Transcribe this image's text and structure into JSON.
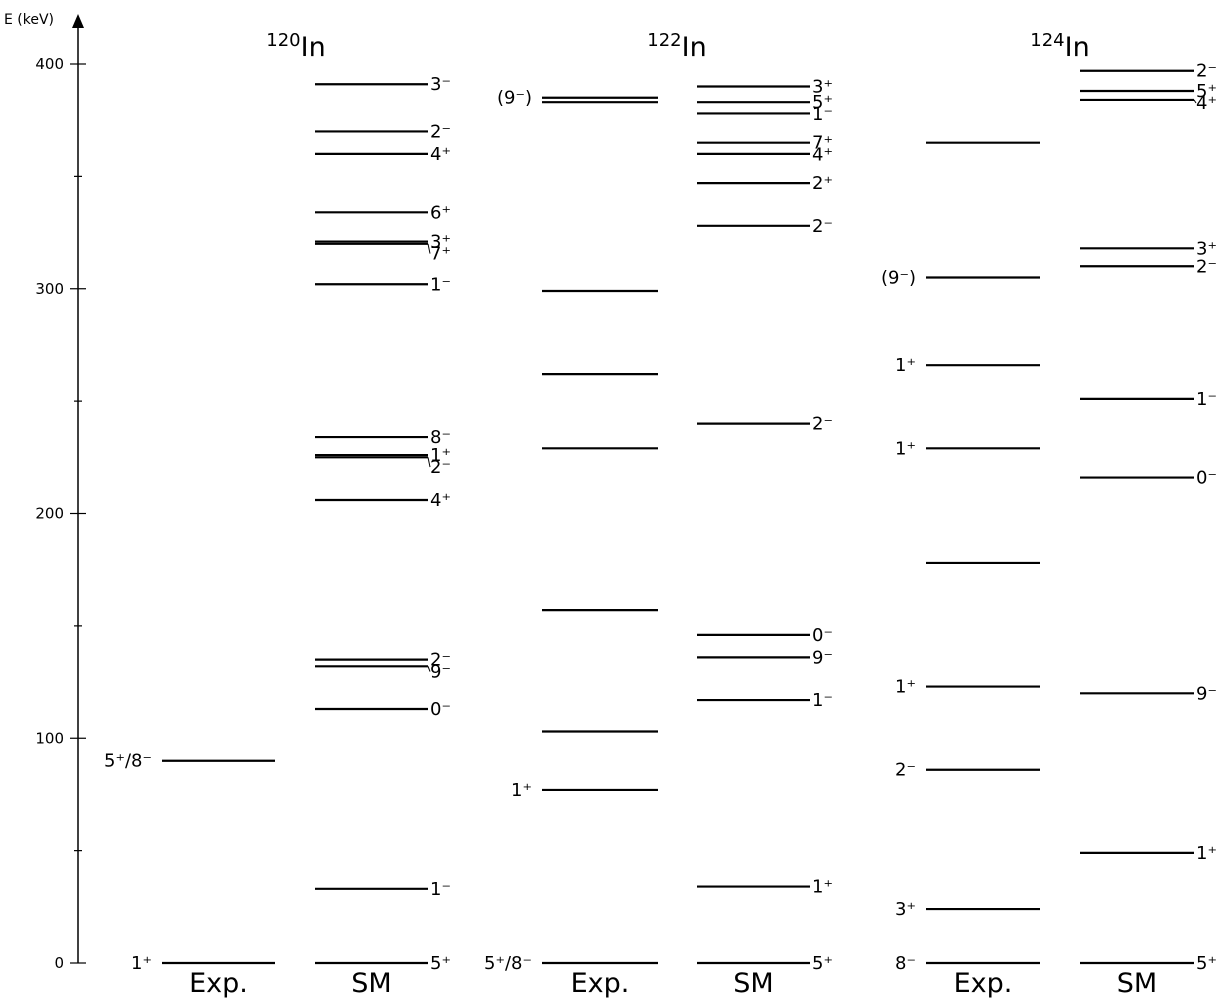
{
  "chart_data": {
    "type": "level_scheme",
    "y_axis": {
      "label": "E (keV)",
      "range": [
        0,
        410
      ],
      "ticks": [
        0,
        100,
        200,
        300,
        400
      ],
      "minor_ticks": [
        50,
        150,
        250,
        350
      ]
    },
    "nuclei": [
      {
        "mass": "120",
        "element": "In",
        "columns": [
          {
            "label": "Exp.",
            "levels": [
              {
                "energy": 0,
                "spin": "1⁺"
              },
              {
                "energy": 90,
                "spin": "5⁺/8⁻"
              }
            ]
          },
          {
            "label": "SM",
            "levels": [
              {
                "energy": 0,
                "spin": "5⁺"
              },
              {
                "energy": 33,
                "spin": "1⁻"
              },
              {
                "energy": 113,
                "spin": "0⁻"
              },
              {
                "energy": 132,
                "spin": "9⁻"
              },
              {
                "energy": 135,
                "spin": "2⁻"
              },
              {
                "energy": 206,
                "spin": "4⁺"
              },
              {
                "energy": 225,
                "spin": "2⁻"
              },
              {
                "energy": 226,
                "spin": "1⁺"
              },
              {
                "energy": 234,
                "spin": "8⁻"
              },
              {
                "energy": 302,
                "spin": "1⁻"
              },
              {
                "energy": 320,
                "spin": "7⁺"
              },
              {
                "energy": 321,
                "spin": "3⁺"
              },
              {
                "energy": 334,
                "spin": "6⁺"
              },
              {
                "energy": 360,
                "spin": "4⁺"
              },
              {
                "energy": 370,
                "spin": "2⁻"
              },
              {
                "energy": 391,
                "spin": "3⁻"
              }
            ]
          }
        ]
      },
      {
        "mass": "122",
        "element": "In",
        "columns": [
          {
            "label": "Exp.",
            "levels": [
              {
                "energy": 0,
                "spin": "5⁺/8⁻"
              },
              {
                "energy": 77,
                "spin": "1⁺"
              },
              {
                "energy": 103,
                "spin": ""
              },
              {
                "energy": 157,
                "spin": ""
              },
              {
                "energy": 229,
                "spin": ""
              },
              {
                "energy": 262,
                "spin": ""
              },
              {
                "energy": 299,
                "spin": ""
              },
              {
                "energy": 383,
                "spin": ""
              },
              {
                "energy": 385,
                "spin": "(9⁻)"
              }
            ]
          },
          {
            "label": "SM",
            "levels": [
              {
                "energy": 0,
                "spin": "5⁺"
              },
              {
                "energy": 34,
                "spin": "1⁺"
              },
              {
                "energy": 117,
                "spin": "1⁻"
              },
              {
                "energy": 136,
                "spin": "9⁻"
              },
              {
                "energy": 146,
                "spin": "0⁻"
              },
              {
                "energy": 240,
                "spin": "2⁻"
              },
              {
                "energy": 328,
                "spin": "2⁻"
              },
              {
                "energy": 347,
                "spin": "2⁺"
              },
              {
                "energy": 360,
                "spin": "4⁺"
              },
              {
                "energy": 365,
                "spin": "7⁺"
              },
              {
                "energy": 378,
                "spin": "1⁻"
              },
              {
                "energy": 383,
                "spin": "5⁺"
              },
              {
                "energy": 390,
                "spin": "3⁺"
              }
            ]
          }
        ]
      },
      {
        "mass": "124",
        "element": "In",
        "columns": [
          {
            "label": "Exp.",
            "levels": [
              {
                "energy": 0,
                "spin": "8⁻"
              },
              {
                "energy": 24,
                "spin": "3⁺"
              },
              {
                "energy": 86,
                "spin": "2⁻"
              },
              {
                "energy": 123,
                "spin": "1⁺"
              },
              {
                "energy": 178,
                "spin": ""
              },
              {
                "energy": 229,
                "spin": "1⁺"
              },
              {
                "energy": 266,
                "spin": "1⁺"
              },
              {
                "energy": 305,
                "spin": "(9⁻)"
              },
              {
                "energy": 365,
                "spin": ""
              }
            ]
          },
          {
            "label": "SM",
            "levels": [
              {
                "energy": 0,
                "spin": "5⁺"
              },
              {
                "energy": 49,
                "spin": "1⁺"
              },
              {
                "energy": 120,
                "spin": "9⁻"
              },
              {
                "energy": 216,
                "spin": "0⁻"
              },
              {
                "energy": 251,
                "spin": "1⁻"
              },
              {
                "energy": 310,
                "spin": "2⁻"
              },
              {
                "energy": 318,
                "spin": "3⁺"
              },
              {
                "energy": 384,
                "spin": "4⁺"
              },
              {
                "energy": 388,
                "spin": "5⁺"
              },
              {
                "energy": 397,
                "spin": "2⁻"
              }
            ]
          }
        ]
      }
    ]
  }
}
